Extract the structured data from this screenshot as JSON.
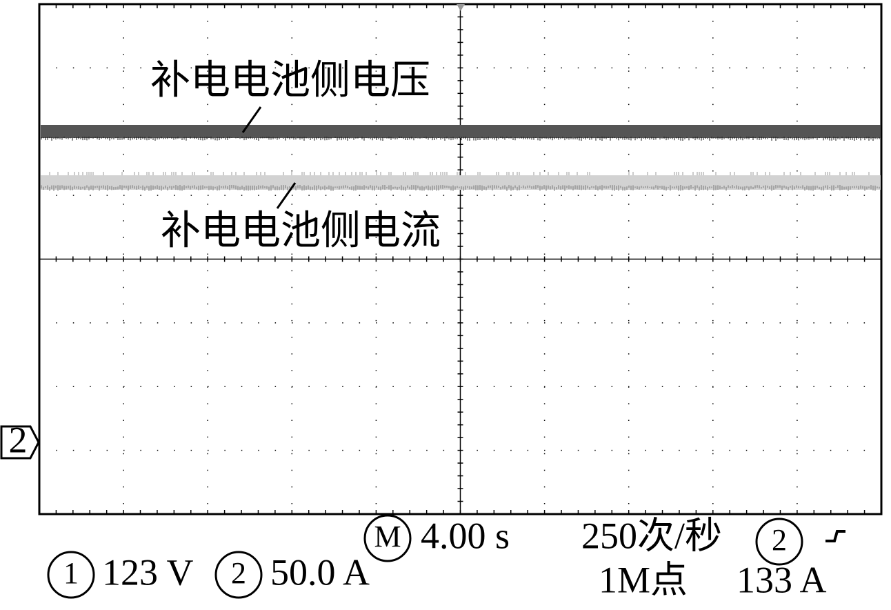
{
  "trace_labels": {
    "voltage": "补电电池侧电压",
    "current": "补电电池侧电流"
  },
  "channel_marker": "2",
  "status": {
    "timebase_marker": "M",
    "timebase": "4.00 s",
    "acquisition_rate": "250次/秒",
    "trigger_channel": "2",
    "ch1_marker": "1",
    "ch1_scale": "123 V",
    "ch2_marker": "2",
    "ch2_scale": "50.0 A",
    "record_length": "1M点",
    "trigger_level": "133 A"
  }
}
